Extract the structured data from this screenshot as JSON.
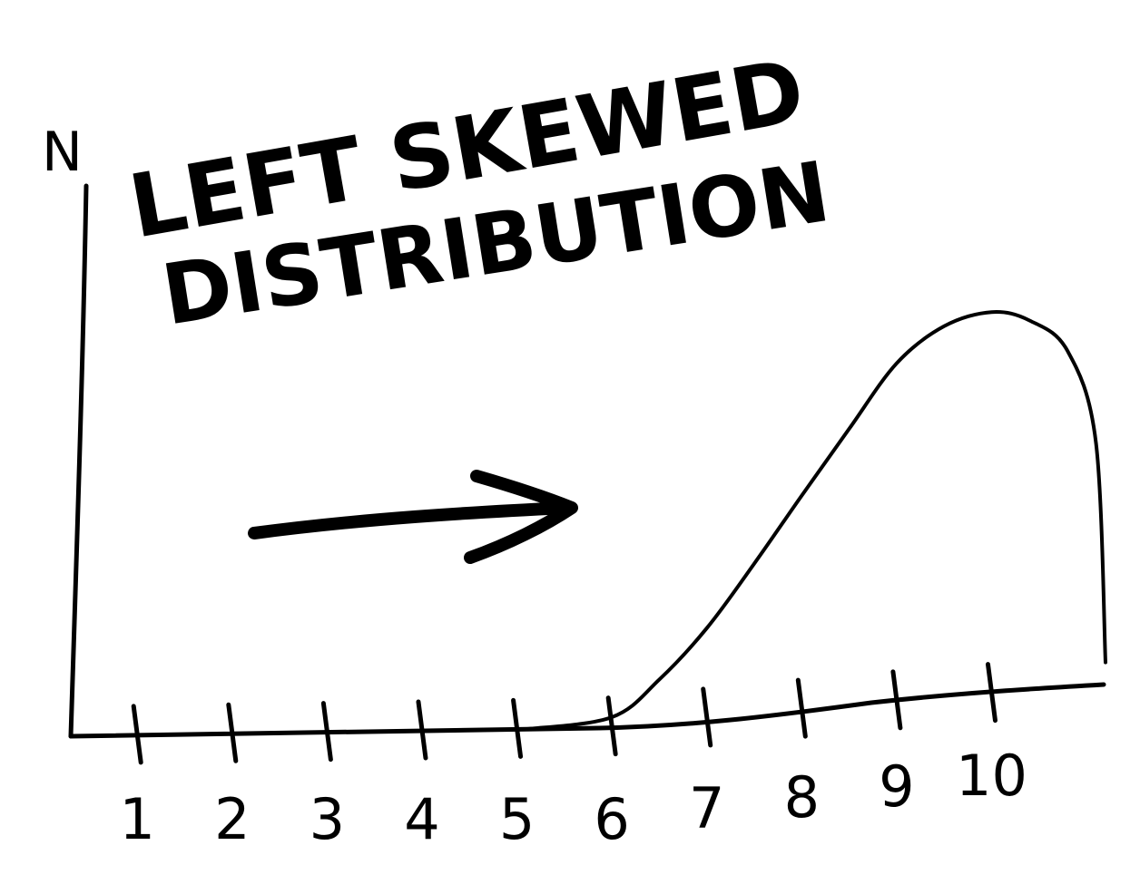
{
  "chart_data": {
    "type": "area",
    "title_lines": [
      "LEFT SKEWED",
      "DISTRIBUTION"
    ],
    "ylabel": "N",
    "xlabel": "",
    "x_tick_labels": [
      "1",
      "2",
      "3",
      "4",
      "5",
      "6",
      "7",
      "8",
      "9",
      "10"
    ],
    "xlim": [
      0.3,
      11.2
    ],
    "ylim": [
      0,
      10
    ],
    "grid": false,
    "legend": "none",
    "annotation": "arrow pointing right",
    "series": [
      {
        "x": [
          5.1,
          6.0,
          6.5,
          7.0,
          7.5,
          8.0,
          8.5,
          9.0,
          9.5,
          10.0,
          10.4,
          10.8,
          11.1,
          11.2
        ],
        "values": [
          0.0,
          0.2,
          0.9,
          1.9,
          3.2,
          4.6,
          6.0,
          7.4,
          8.2,
          8.5,
          8.3,
          7.6,
          5.5,
          0.5
        ]
      }
    ],
    "color": "#000000"
  }
}
